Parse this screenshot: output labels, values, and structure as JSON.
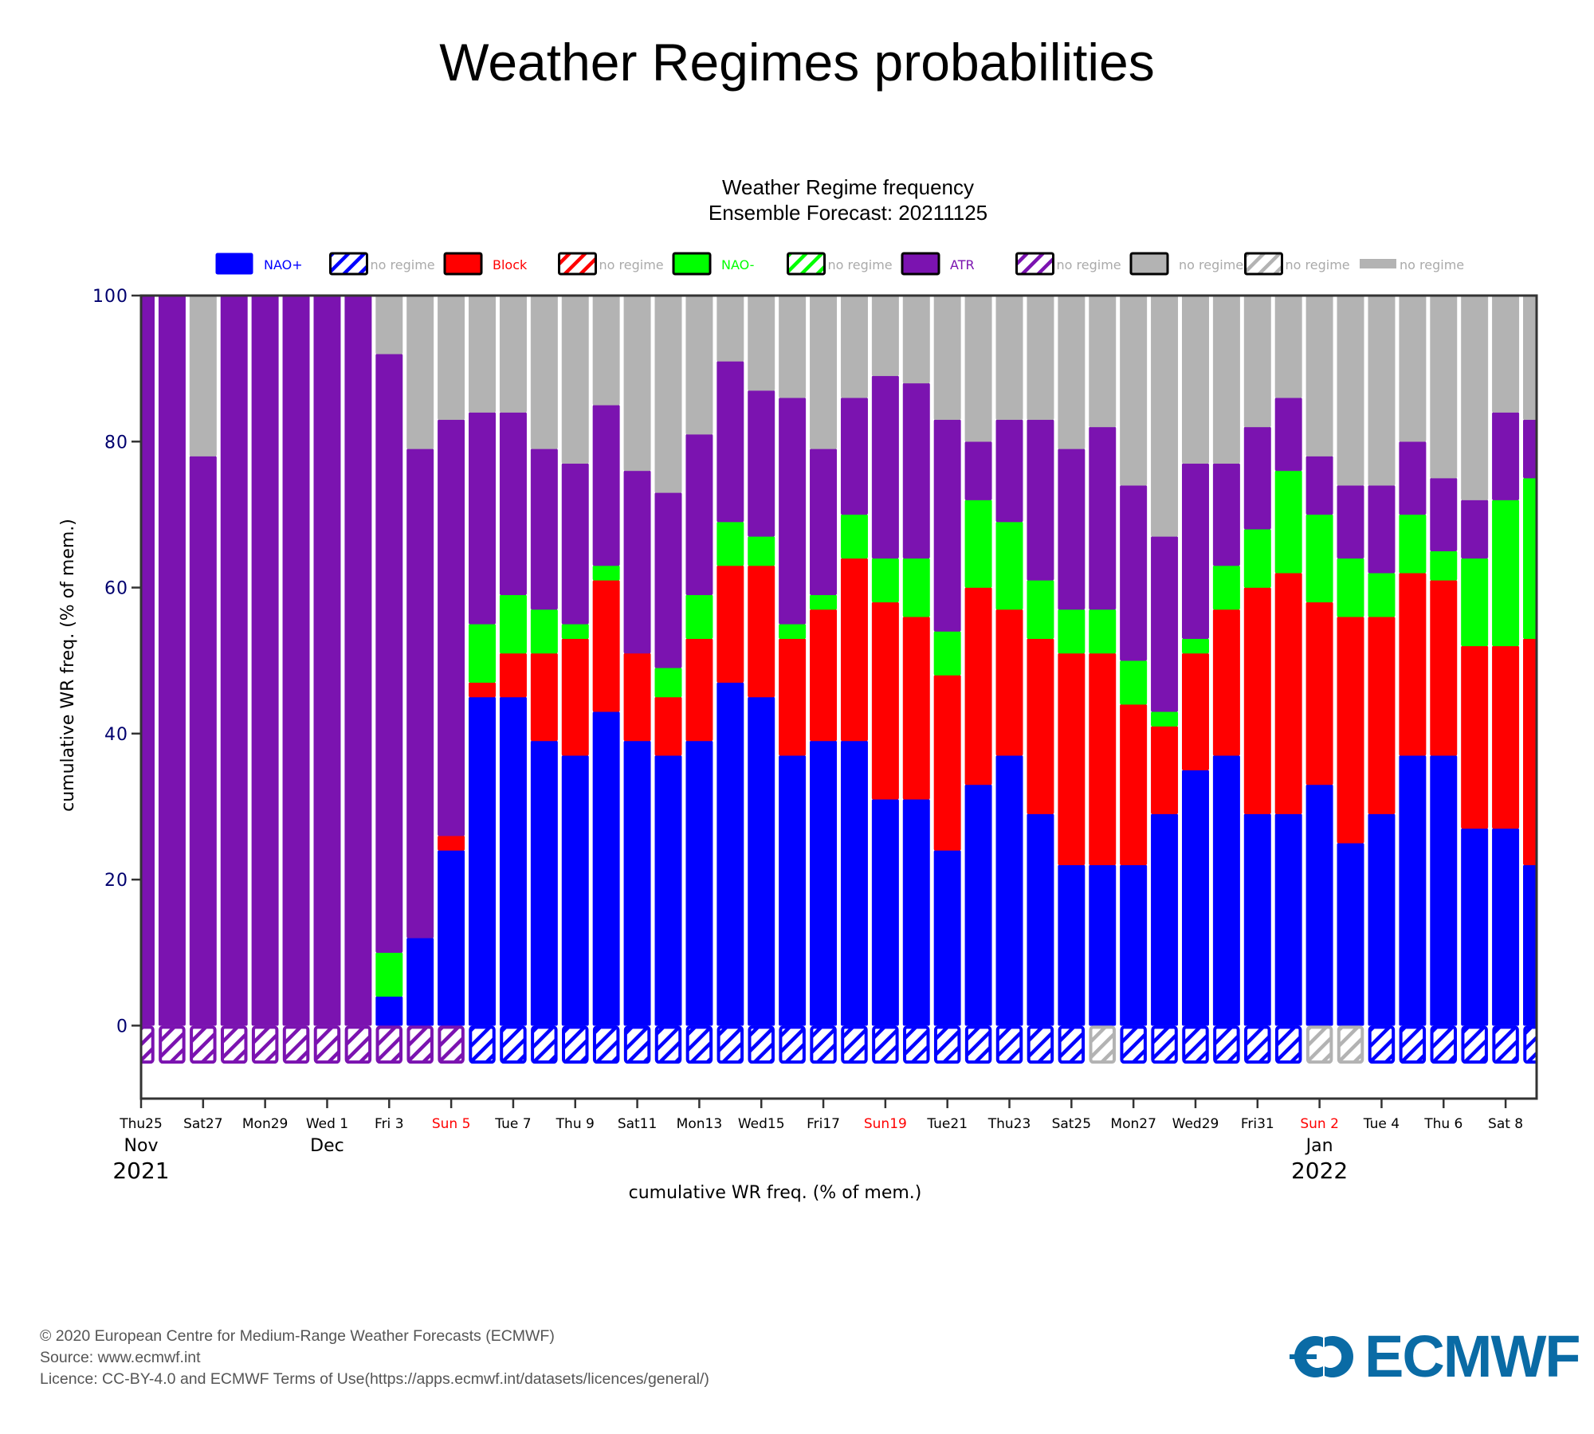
{
  "page": {
    "main_title": "Weather Regimes probabilities",
    "chart_title_line1": "Weather Regime frequency",
    "chart_title_line2": "Ensemble Forecast: 20211125",
    "footer": {
      "line1": "© 2020 European Centre for Medium-Range Weather Forecasts (ECMWF)",
      "line2": "Source: www.ecmwf.int",
      "line3": "Licence: CC-BY-4.0 and ECMWF Terms of Use(https://apps.ecmwf.int/datasets/licences/general/)"
    },
    "logo_text": "ECMWF",
    "colors": {
      "nao_plus": "#0000ff",
      "block": "#ff0000",
      "nao_minus": "#00ff00",
      "atr": "#7b13b0",
      "no_regime": "#b3b3b3",
      "axis_tick_labels": "#00006e",
      "weekend_label": "#ff0000",
      "logo": "#0a6ba5"
    }
  },
  "chart_data": {
    "type": "bar",
    "stacked": true,
    "title": "Weather Regime frequency",
    "subtitle": "Ensemble Forecast: 20211125",
    "xlabel": "cumulative WR freq. (% of mem.)",
    "ylabel": "cumulative WR freq. (% of mem.)",
    "ylim": [
      -10,
      100
    ],
    "yticks": [
      0,
      20,
      40,
      60,
      80,
      100
    ],
    "grid": false,
    "legend_position": "top",
    "legend": [
      {
        "label": "NAO+",
        "style": "solid",
        "color": "#0000ff",
        "text_color": "#0000ff"
      },
      {
        "label": "no regime",
        "style": "hatch",
        "color": "#0000ff",
        "text_color": "#aaaaaa"
      },
      {
        "label": "Block",
        "style": "solid",
        "color": "#ff0000",
        "text_color": "#ff0000"
      },
      {
        "label": "no regime",
        "style": "hatch",
        "color": "#ff0000",
        "text_color": "#aaaaaa"
      },
      {
        "label": "NAO-",
        "style": "solid",
        "color": "#00ff00",
        "text_color": "#00ff00"
      },
      {
        "label": "no regime",
        "style": "hatch",
        "color": "#00ff00",
        "text_color": "#aaaaaa"
      },
      {
        "label": "ATR",
        "style": "solid",
        "color": "#7b13b0",
        "text_color": "#7b13b0"
      },
      {
        "label": "no regime",
        "style": "hatch",
        "color": "#7b13b0",
        "text_color": "#aaaaaa"
      },
      {
        "label": "no regime",
        "style": "solid",
        "color": "#b3b3b3",
        "text_color": "#aaaaaa"
      },
      {
        "label": "no regime",
        "style": "hatch",
        "color": "#b3b3b3",
        "text_color": "#aaaaaa"
      },
      {
        "label": "no regime",
        "style": "line",
        "color": "#b3b3b3",
        "text_color": "#aaaaaa"
      }
    ],
    "x_tick_labels": [
      {
        "label": "Thu25",
        "weekend": false
      },
      {
        "label": "Sat27",
        "weekend": false
      },
      {
        "label": "Mon29",
        "weekend": false
      },
      {
        "label": "Wed 1",
        "weekend": false
      },
      {
        "label": "Fri 3",
        "weekend": false
      },
      {
        "label": "Sun 5",
        "weekend": true
      },
      {
        "label": "Tue 7",
        "weekend": false
      },
      {
        "label": "Thu 9",
        "weekend": false
      },
      {
        "label": "Sat11",
        "weekend": false
      },
      {
        "label": "Mon13",
        "weekend": false
      },
      {
        "label": "Wed15",
        "weekend": false
      },
      {
        "label": "Fri17",
        "weekend": false
      },
      {
        "label": "Sun19",
        "weekend": true
      },
      {
        "label": "Tue21",
        "weekend": false
      },
      {
        "label": "Thu23",
        "weekend": false
      },
      {
        "label": "Sat25",
        "weekend": false
      },
      {
        "label": "Mon27",
        "weekend": false
      },
      {
        "label": "Wed29",
        "weekend": false
      },
      {
        "label": "Fri31",
        "weekend": false
      },
      {
        "label": "Sun 2",
        "weekend": true
      },
      {
        "label": "Tue 4",
        "weekend": false
      },
      {
        "label": "Thu 6",
        "weekend": false
      },
      {
        "label": "Sat 8",
        "weekend": false
      }
    ],
    "month_labels": [
      {
        "label": "Nov",
        "tick_index": 0
      },
      {
        "label": "Dec",
        "tick_index": 3
      },
      {
        "label": "Jan",
        "tick_index": 19
      }
    ],
    "year_labels": [
      {
        "label": "2021",
        "tick_index": 0
      },
      {
        "label": "2022",
        "tick_index": 19
      }
    ],
    "series_order": [
      "NAO+",
      "Block",
      "NAO-",
      "ATR",
      "no regime"
    ],
    "categories": [
      "2021-11-25",
      "2021-11-26",
      "2021-11-27",
      "2021-11-28",
      "2021-11-29",
      "2021-11-30",
      "2021-12-01",
      "2021-12-02",
      "2021-12-03",
      "2021-12-04",
      "2021-12-05",
      "2021-12-06",
      "2021-12-07",
      "2021-12-08",
      "2021-12-09",
      "2021-12-10",
      "2021-12-11",
      "2021-12-12",
      "2021-12-13",
      "2021-12-14",
      "2021-12-15",
      "2021-12-16",
      "2021-12-17",
      "2021-12-18",
      "2021-12-19",
      "2021-12-20",
      "2021-12-21",
      "2021-12-22",
      "2021-12-23",
      "2021-12-24",
      "2021-12-25",
      "2021-12-26",
      "2021-12-27",
      "2021-12-28",
      "2021-12-29",
      "2021-12-30",
      "2021-12-31",
      "2022-01-01",
      "2022-01-02",
      "2022-01-03",
      "2022-01-04",
      "2022-01-05",
      "2022-01-06",
      "2022-01-07",
      "2022-01-08",
      "2022-01-09"
    ],
    "series": [
      {
        "name": "NAO+",
        "values": [
          0,
          0,
          0,
          0,
          0,
          0,
          0,
          0,
          4,
          12,
          24,
          45,
          45,
          39,
          37,
          43,
          39,
          37,
          39,
          47,
          45,
          37,
          39,
          39,
          31,
          31,
          24,
          33,
          37,
          29,
          22,
          22,
          22,
          29,
          35,
          37,
          29,
          29,
          33,
          25,
          29,
          37,
          37,
          27,
          27,
          22
        ]
      },
      {
        "name": "Block",
        "values": [
          0,
          0,
          0,
          0,
          0,
          0,
          0,
          0,
          0,
          0,
          2,
          2,
          6,
          12,
          16,
          18,
          12,
          8,
          14,
          16,
          18,
          16,
          18,
          25,
          27,
          25,
          24,
          27,
          20,
          24,
          29,
          29,
          22,
          12,
          16,
          20,
          31,
          33,
          25,
          31,
          27,
          25,
          24,
          25,
          25,
          31
        ]
      },
      {
        "name": "NAO-",
        "values": [
          0,
          0,
          0,
          0,
          0,
          0,
          0,
          0,
          6,
          0,
          0,
          8,
          8,
          6,
          2,
          2,
          0,
          4,
          6,
          6,
          4,
          2,
          2,
          6,
          6,
          8,
          6,
          12,
          12,
          8,
          6,
          6,
          6,
          2,
          2,
          6,
          8,
          14,
          12,
          8,
          6,
          8,
          4,
          12,
          20,
          22
        ]
      },
      {
        "name": "ATR",
        "values": [
          100,
          100,
          78,
          100,
          100,
          100,
          100,
          100,
          82,
          67,
          57,
          29,
          25,
          22,
          22,
          22,
          25,
          24,
          22,
          22,
          20,
          31,
          20,
          16,
          25,
          24,
          29,
          8,
          14,
          22,
          22,
          25,
          24,
          24,
          24,
          14,
          14,
          10,
          8,
          10,
          12,
          10,
          10,
          8,
          12,
          8
        ]
      },
      {
        "name": "no regime",
        "values": [
          0,
          0,
          22,
          0,
          0,
          0,
          0,
          0,
          8,
          21,
          17,
          16,
          16,
          21,
          23,
          15,
          24,
          27,
          19,
          9,
          13,
          14,
          21,
          14,
          11,
          12,
          17,
          20,
          17,
          17,
          21,
          18,
          26,
          33,
          23,
          23,
          18,
          14,
          22,
          26,
          26,
          20,
          25,
          28,
          16,
          17
        ]
      }
    ],
    "dominant_regime_hatch": [
      "ATR",
      "ATR",
      "ATR",
      "ATR",
      "ATR",
      "ATR",
      "ATR",
      "ATR",
      "ATR",
      "ATR",
      "ATR",
      "NAO+",
      "NAO+",
      "NAO+",
      "NAO+",
      "NAO+",
      "NAO+",
      "NAO+",
      "NAO+",
      "NAO+",
      "NAO+",
      "NAO+",
      "NAO+",
      "NAO+",
      "NAO+",
      "NAO+",
      "NAO+",
      "NAO+",
      "NAO+",
      "NAO+",
      "NAO+",
      "no regime",
      "NAO+",
      "NAO+",
      "NAO+",
      "NAO+",
      "NAO+",
      "NAO+",
      "no regime",
      "no regime",
      "NAO+",
      "NAO+",
      "NAO+",
      "NAO+",
      "NAO+",
      "NAO+"
    ]
  }
}
